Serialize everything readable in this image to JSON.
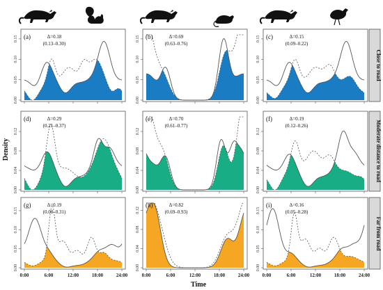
{
  "colors": {
    "close_to_road": "#1a7dc4",
    "moderate_distance": "#19ad86",
    "far_from_road": "#f5a623",
    "curve_line": "#555555",
    "dashed_line": "#555555",
    "strip_bg": "#d9d9d9"
  },
  "icons": [
    {
      "name": "civet-silhouette-icon",
      "column": 1
    },
    {
      "name": "squirrel-silhouette-icon",
      "column": 1
    },
    {
      "name": "civet-silhouette-icon",
      "column": 2
    },
    {
      "name": "rat-silhouette-icon",
      "column": 2
    },
    {
      "name": "civet-silhouette-icon",
      "column": 3
    },
    {
      "name": "pheasant-silhouette-icon",
      "column": 3
    }
  ],
  "axes": {
    "ylabel": "Density",
    "xlabel": "Time",
    "x_ticks": [
      "0:00",
      "6:00",
      "12:00",
      "18:00",
      "24:00"
    ]
  },
  "rows": [
    "Close to road",
    "Moderate distance to road",
    "Far from road"
  ],
  "chart_data": [
    {
      "type": "area",
      "id": "a",
      "label": "(a)",
      "row": 0,
      "col": 0,
      "delta": "Δ=0.18",
      "ci": "(0.13–0.30)",
      "xlim": [
        0,
        24
      ],
      "ylim": [
        0,
        0.16
      ],
      "y_ticks": [
        "0.00",
        "0.05",
        "0.10",
        "0.15"
      ],
      "y_tick_values": [
        0,
        0.05,
        0.1,
        0.15
      ],
      "solid": {
        "base": 0.06,
        "peaks": [
          {
            "mu": 2.6,
            "sd": 1.3,
            "amp": -0.025
          },
          {
            "mu": 5.5,
            "sd": 1.2,
            "amp": 0.035
          },
          {
            "mu": 10,
            "sd": 1.5,
            "amp": -0.04
          },
          {
            "mu": 14,
            "sd": 2.0,
            "amp": -0.015
          },
          {
            "mu": 19.6,
            "sd": 1.4,
            "amp": 0.085
          },
          {
            "mu": 23,
            "sd": 1.5,
            "amp": -0.01
          }
        ]
      },
      "dashed": {
        "base": 0.04,
        "peaks": [
          {
            "mu": 6.7,
            "sd": 0.9,
            "amp": 0.06
          },
          {
            "mu": 11,
            "sd": 1.6,
            "amp": 0.04
          },
          {
            "mu": 14.6,
            "sd": 1.0,
            "amp": 0.045
          },
          {
            "mu": 17.6,
            "sd": 1.6,
            "amp": 0.06
          },
          {
            "mu": 2,
            "sd": 1.5,
            "amp": -0.04
          },
          {
            "mu": 21.5,
            "sd": 1.0,
            "amp": -0.02
          }
        ]
      }
    },
    {
      "type": "area",
      "id": "b",
      "label": "(b)",
      "row": 0,
      "col": 1,
      "delta": "Δ=0.69",
      "ci": "(0.63–0.76)",
      "xlim": [
        0,
        24
      ],
      "ylim": [
        0,
        0.16
      ],
      "y_ticks": [
        "0.00",
        "0.05",
        "0.10",
        "0.15"
      ],
      "y_tick_values": [
        0,
        0.05,
        0.1,
        0.15
      ],
      "solid": {
        "base": 0.0,
        "peaks": [
          {
            "mu": 1.0,
            "sd": 1.8,
            "amp": 0.05
          },
          {
            "mu": 4.8,
            "sd": 1.2,
            "amp": 0.075
          },
          {
            "mu": 19.0,
            "sd": 1.2,
            "amp": 0.14
          },
          {
            "mu": 22.0,
            "sd": 1.8,
            "amp": 0.04
          }
        ]
      },
      "dashed": {
        "base": 0.0,
        "peaks": [
          {
            "mu": 0.5,
            "sd": 2.0,
            "amp": 0.11
          },
          {
            "mu": 4.2,
            "sd": 1.6,
            "amp": 0.05
          },
          {
            "mu": 19.5,
            "sd": 1.5,
            "amp": 0.11
          },
          {
            "mu": 23.5,
            "sd": 1.6,
            "amp": 0.1
          }
        ]
      }
    },
    {
      "type": "area",
      "id": "c",
      "label": "(c)",
      "row": 0,
      "col": 2,
      "delta": "Δ=0.15",
      "ci": "(0.09–0.22)",
      "xlim": [
        0,
        24
      ],
      "ylim": [
        0,
        0.16
      ],
      "y_ticks": [
        "0.00",
        "0.05",
        "0.10",
        "0.15"
      ],
      "y_tick_values": [
        0,
        0.05,
        0.1,
        0.15
      ],
      "solid": {
        "base": 0.06,
        "peaks": [
          {
            "mu": 2.6,
            "sd": 1.3,
            "amp": -0.025
          },
          {
            "mu": 5.5,
            "sd": 1.2,
            "amp": 0.035
          },
          {
            "mu": 10,
            "sd": 1.5,
            "amp": -0.04
          },
          {
            "mu": 14,
            "sd": 2.0,
            "amp": -0.015
          },
          {
            "mu": 19.6,
            "sd": 1.4,
            "amp": 0.085
          },
          {
            "mu": 23,
            "sd": 1.5,
            "amp": -0.01
          }
        ]
      },
      "dashed": {
        "base": 0.045,
        "peaks": [
          {
            "mu": 7.0,
            "sd": 1.0,
            "amp": 0.055
          },
          {
            "mu": 12,
            "sd": 1.5,
            "amp": 0.035
          },
          {
            "mu": 15.5,
            "sd": 1.2,
            "amp": 0.04
          },
          {
            "mu": 20.5,
            "sd": 1.2,
            "amp": 0.015
          },
          {
            "mu": 2,
            "sd": 1.5,
            "amp": -0.04
          },
          {
            "mu": 23,
            "sd": 1.2,
            "amp": -0.015
          }
        ]
      }
    },
    {
      "type": "area",
      "id": "d",
      "label": "(d)",
      "row": 1,
      "col": 0,
      "delta": "Δ=0.29",
      "ci": "(0.21–0.37)",
      "xlim": [
        0,
        24
      ],
      "ylim": [
        0,
        0.15
      ],
      "y_ticks": [
        "0.00",
        "0.04",
        "0.08",
        "0.12"
      ],
      "y_tick_values": [
        0,
        0.04,
        0.08,
        0.12
      ],
      "solid": {
        "base": 0.05,
        "peaks": [
          {
            "mu": 5.6,
            "sd": 1.2,
            "amp": 0.03
          },
          {
            "mu": 10,
            "sd": 1.6,
            "amp": -0.04
          },
          {
            "mu": 14,
            "sd": 2.0,
            "amp": -0.02
          },
          {
            "mu": 18.2,
            "sd": 1.1,
            "amp": 0.055
          },
          {
            "mu": 21,
            "sd": 1.2,
            "amp": 0.035
          },
          {
            "mu": 2.5,
            "sd": 1.4,
            "amp": -0.01
          }
        ]
      },
      "dashed": {
        "base": 0.035,
        "peaks": [
          {
            "mu": 6.5,
            "sd": 1.0,
            "amp": 0.1
          },
          {
            "mu": 10,
            "sd": 1.5,
            "amp": 0.01
          },
          {
            "mu": 19.5,
            "sd": 1.8,
            "amp": 0.07
          },
          {
            "mu": 2,
            "sd": 1.5,
            "amp": -0.035
          },
          {
            "mu": 14,
            "sd": 1.5,
            "amp": -0.01
          }
        ]
      }
    },
    {
      "type": "area",
      "id": "e",
      "label": "(e)",
      "row": 1,
      "col": 1,
      "delta": "Δ=0.70",
      "ci": "(0.61–0.77)",
      "xlim": [
        0,
        24
      ],
      "ylim": [
        0,
        0.15
      ],
      "y_ticks": [
        "0.00",
        "0.04",
        "0.08",
        "0.12"
      ],
      "y_tick_values": [
        0,
        0.04,
        0.08,
        0.12
      ],
      "solid": {
        "base": 0.0,
        "peaks": [
          {
            "mu": 1.0,
            "sd": 2.0,
            "amp": 0.055
          },
          {
            "mu": 4.8,
            "sd": 1.2,
            "amp": 0.06
          },
          {
            "mu": 18.4,
            "sd": 1.1,
            "amp": 0.1
          },
          {
            "mu": 21.5,
            "sd": 1.2,
            "amp": 0.085
          },
          {
            "mu": 23.5,
            "sd": 0.8,
            "amp": 0.02
          }
        ]
      },
      "dashed": {
        "base": 0.0,
        "peaks": [
          {
            "mu": 1.0,
            "sd": 1.8,
            "amp": 0.11
          },
          {
            "mu": 4.3,
            "sd": 1.4,
            "amp": 0.06
          },
          {
            "mu": 19.0,
            "sd": 1.3,
            "amp": 0.09
          },
          {
            "mu": 23.5,
            "sd": 1.4,
            "amp": 0.1
          }
        ]
      }
    },
    {
      "type": "area",
      "id": "f",
      "label": "(f)",
      "row": 1,
      "col": 2,
      "delta": "Δ=0.19",
      "ci": "(0.12–0.26)",
      "xlim": [
        0,
        24
      ],
      "ylim": [
        0,
        0.15
      ],
      "y_ticks": [
        "0.00",
        "0.04",
        "0.08",
        "0.12"
      ],
      "y_tick_values": [
        0,
        0.04,
        0.08,
        0.12
      ],
      "solid": {
        "base": 0.05,
        "peaks": [
          {
            "mu": 5.6,
            "sd": 1.2,
            "amp": 0.025
          },
          {
            "mu": 10,
            "sd": 1.6,
            "amp": -0.04
          },
          {
            "mu": 14,
            "sd": 2.0,
            "amp": -0.02
          },
          {
            "mu": 18.8,
            "sd": 1.2,
            "amp": 0.07
          },
          {
            "mu": 21.5,
            "sd": 1.2,
            "amp": 0.025
          },
          {
            "mu": 2.5,
            "sd": 1.4,
            "amp": -0.01
          }
        ]
      },
      "dashed": {
        "base": 0.04,
        "peaks": [
          {
            "mu": 7.0,
            "sd": 1.0,
            "amp": 0.06
          },
          {
            "mu": 11.5,
            "sd": 1.6,
            "amp": 0.04
          },
          {
            "mu": 15.5,
            "sd": 1.2,
            "amp": 0.03
          },
          {
            "mu": 2,
            "sd": 1.5,
            "amp": -0.04
          },
          {
            "mu": 22,
            "sd": 1.2,
            "amp": -0.01
          }
        ]
      }
    },
    {
      "type": "area",
      "id": "g",
      "label": "(g)",
      "row": 2,
      "col": 0,
      "delta": "Δ=0.19",
      "ci": "(0.08–0.31)",
      "xlim": [
        0,
        24
      ],
      "ylim": [
        0,
        0.17
      ],
      "y_ticks": [
        "0.00",
        "0.05",
        "0.10",
        "0.15"
      ],
      "y_tick_values": [
        0,
        0.05,
        0.1,
        0.15
      ],
      "solid": {
        "base": 0.03,
        "peaks": [
          {
            "mu": 2.6,
            "sd": 1.6,
            "amp": 0.1
          },
          {
            "mu": 6.0,
            "sd": 1.0,
            "amp": 0.01
          },
          {
            "mu": 10,
            "sd": 1.8,
            "amp": -0.025
          },
          {
            "mu": 14,
            "sd": 2.0,
            "amp": -0.02
          },
          {
            "mu": 18.5,
            "sd": 1.2,
            "amp": 0.015
          },
          {
            "mu": 21.5,
            "sd": 1.4,
            "amp": 0.03
          }
        ]
      },
      "dashed": {
        "base": 0.02,
        "peaks": [
          {
            "mu": 6.8,
            "sd": 0.8,
            "amp": 0.14
          },
          {
            "mu": 9.5,
            "sd": 1.2,
            "amp": 0.05
          },
          {
            "mu": 13,
            "sd": 1.0,
            "amp": 0.025
          },
          {
            "mu": 16.5,
            "sd": 1.0,
            "amp": 0.06
          },
          {
            "mu": 19.5,
            "sd": 1.0,
            "amp": 0.02
          },
          {
            "mu": 2,
            "sd": 1.5,
            "amp": -0.015
          }
        ]
      }
    },
    {
      "type": "area",
      "id": "h",
      "label": "(h)",
      "row": 2,
      "col": 1,
      "delta": "Δ=0.82",
      "ci": "(0.69–0.93)",
      "xlim": [
        0,
        24
      ],
      "ylim": [
        0,
        0.135
      ],
      "y_ticks": [
        "0.00",
        "0.04",
        "0.08",
        "0.12"
      ],
      "y_tick_values": [
        0,
        0.04,
        0.08,
        0.12
      ],
      "solid": {
        "base": 0.0,
        "peaks": [
          {
            "mu": 2.0,
            "sd": 1.6,
            "amp": 0.12
          },
          {
            "mu": 0.0,
            "sd": 1.5,
            "amp": 0.02
          },
          {
            "mu": 20.0,
            "sd": 1.6,
            "amp": 0.06
          },
          {
            "mu": 23.5,
            "sd": 1.2,
            "amp": 0.04
          }
        ]
      },
      "dashed": {
        "base": 0.0,
        "peaks": [
          {
            "mu": 2.4,
            "sd": 2.0,
            "amp": 0.105
          },
          {
            "mu": 20.0,
            "sd": 1.8,
            "amp": 0.065
          },
          {
            "mu": 23.8,
            "sd": 1.6,
            "amp": 0.085
          }
        ]
      }
    },
    {
      "type": "area",
      "id": "i",
      "label": "(i)",
      "row": 2,
      "col": 2,
      "delta": "Δ=0.16",
      "ci": "(0.05–0.28)",
      "xlim": [
        0,
        24
      ],
      "ylim": [
        0,
        0.17
      ],
      "y_ticks": [
        "0.00",
        "0.05",
        "0.10",
        "0.15"
      ],
      "y_tick_values": [
        0,
        0.05,
        0.1,
        0.15
      ],
      "solid": {
        "base": 0.03,
        "peaks": [
          {
            "mu": 1.5,
            "sd": 1.5,
            "amp": 0.125
          },
          {
            "mu": 6.0,
            "sd": 1.0,
            "amp": 0.01
          },
          {
            "mu": 10,
            "sd": 1.8,
            "amp": -0.025
          },
          {
            "mu": 14,
            "sd": 2.0,
            "amp": -0.02
          },
          {
            "mu": 18.5,
            "sd": 1.2,
            "amp": 0.02
          },
          {
            "mu": 21.5,
            "sd": 1.4,
            "amp": 0.03
          }
        ]
      },
      "dashed": {
        "base": 0.02,
        "peaks": [
          {
            "mu": 6.8,
            "sd": 0.8,
            "amp": 0.12
          },
          {
            "mu": 9.5,
            "sd": 1.2,
            "amp": 0.055
          },
          {
            "mu": 13,
            "sd": 1.0,
            "amp": 0.03
          },
          {
            "mu": 16.5,
            "sd": 1.2,
            "amp": 0.06
          },
          {
            "mu": 20.5,
            "sd": 1.4,
            "amp": 0.01
          },
          {
            "mu": 2,
            "sd": 1.5,
            "amp": -0.015
          }
        ]
      }
    }
  ]
}
